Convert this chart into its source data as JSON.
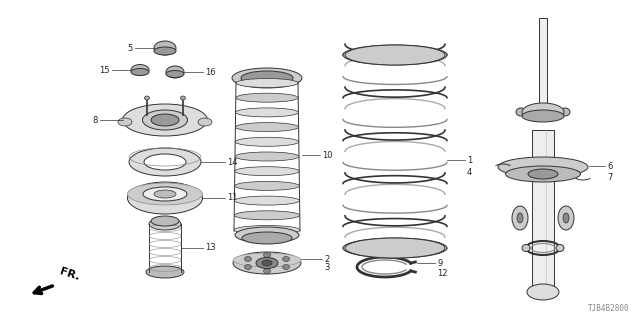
{
  "bg_color": "#ffffff",
  "part_number": "TJB4B2800",
  "line_color": "#333333",
  "gray_light": "#cccccc",
  "gray_mid": "#aaaaaa",
  "gray_dark": "#888888"
}
